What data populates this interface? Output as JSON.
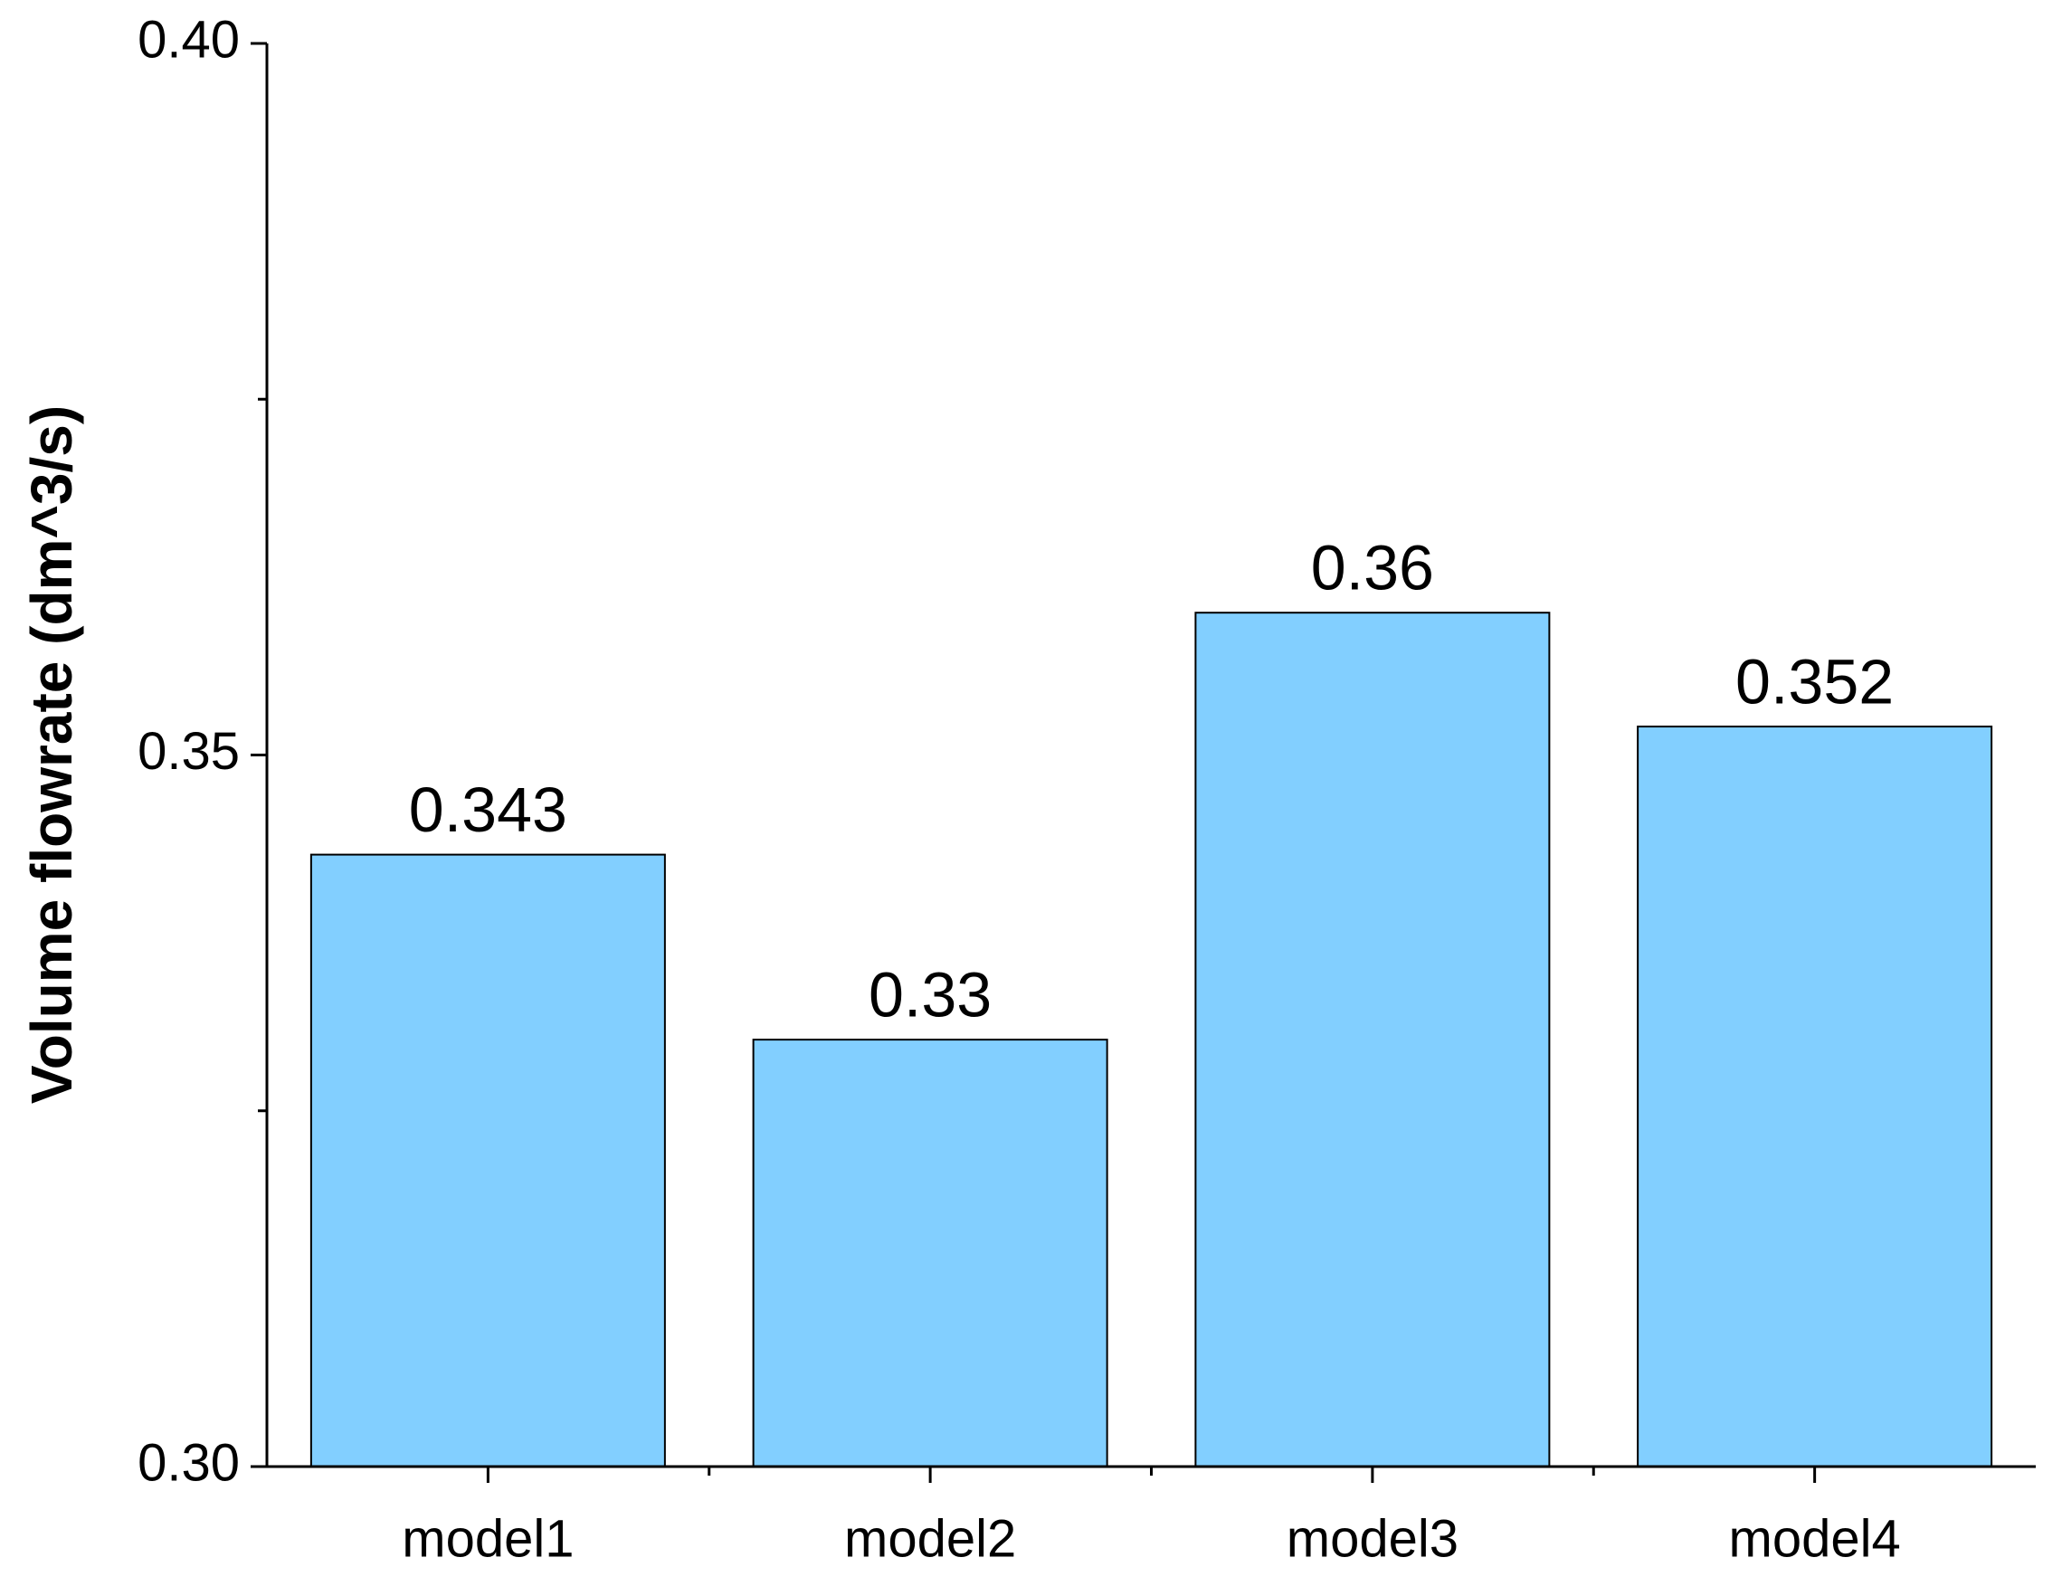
{
  "chart_data": {
    "type": "bar",
    "y_label": "Volume flowrate (dm^3/s)",
    "categories": [
      "model1",
      "model2",
      "model3",
      "model4"
    ],
    "values": [
      0.343,
      0.33,
      0.36,
      0.352
    ],
    "color": "#82cfff",
    "ylim": [
      0.3,
      0.4
    ],
    "yticks": [
      {
        "value": 0.3,
        "label": "0.30"
      },
      {
        "value": 0.35,
        "label": "0.35"
      },
      {
        "value": 0.4,
        "label": "0.40"
      }
    ],
    "yminorticks": [
      0.325,
      0.375
    ],
    "data_labels": true
  }
}
